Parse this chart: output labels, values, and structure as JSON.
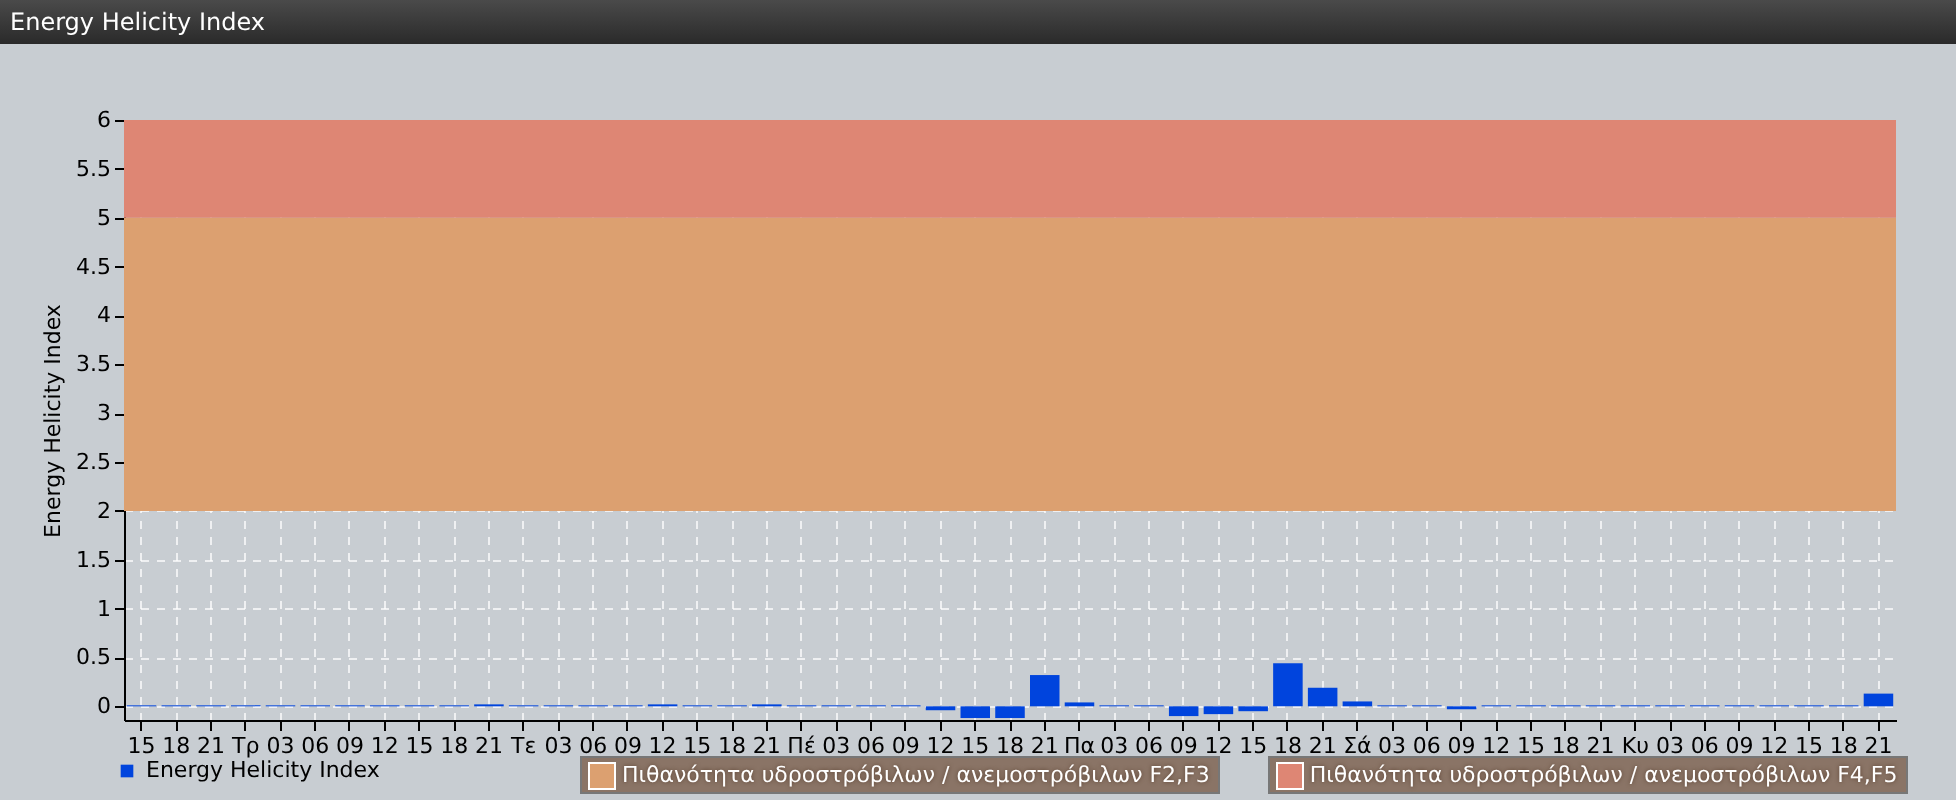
{
  "chart_data": {
    "type": "bar",
    "title": "Energy Helicity Index",
    "ylabel": "Energy Helicity Index",
    "categories": [
      "15",
      "18",
      "21",
      "Τρ",
      "03",
      "06",
      "09",
      "12",
      "15",
      "18",
      "21",
      "Τε",
      "03",
      "06",
      "09",
      "12",
      "15",
      "18",
      "21",
      "Πέ",
      "03",
      "06",
      "09",
      "12",
      "15",
      "18",
      "21",
      "Πα",
      "03",
      "06",
      "09",
      "12",
      "15",
      "18",
      "21",
      "Σά",
      "03",
      "06",
      "09",
      "12",
      "15",
      "18",
      "21",
      "Κυ",
      "03",
      "06",
      "09",
      "12",
      "15",
      "18",
      "21"
    ],
    "series": [
      {
        "name": "Energy Helicity Index",
        "color": "#0044dd",
        "values": [
          0.01,
          0.01,
          0.01,
          0.01,
          0.01,
          0.01,
          0.01,
          0.01,
          0.01,
          0.01,
          0.02,
          0.01,
          0.01,
          0.01,
          0.01,
          0.02,
          0.01,
          0.01,
          0.02,
          0.01,
          0.01,
          0.01,
          0.01,
          -0.04,
          -0.12,
          -0.12,
          0.32,
          0.04,
          0.01,
          0.01,
          -0.1,
          -0.08,
          -0.05,
          0.44,
          0.19,
          0.05,
          0.01,
          0.01,
          -0.03,
          0.01,
          0.01,
          0.01,
          0.01,
          0.01,
          0.01,
          0.01,
          0.01,
          0.01,
          0.01,
          0.01,
          0.13
        ]
      }
    ],
    "ylim": [
      -0.14,
      6
    ],
    "yticks": [
      0,
      0.5,
      1,
      1.5,
      2,
      2.5,
      3,
      3.5,
      4,
      4.5,
      5,
      5.5,
      6
    ],
    "bands": [
      {
        "axis": "y",
        "from": 2,
        "to": 5,
        "label": "Πιθανότητα υδροστρόβιλων / ανεμοστρόβιλων F2,F3",
        "color": "#dca070"
      },
      {
        "axis": "y",
        "from": 5,
        "to": 6,
        "label": "Πιθανότητα υδροστρόβιλων / ανεμοστρόβιλων F4,F5",
        "color": "#de8674"
      }
    ],
    "grid": true,
    "legend": "bottom left"
  }
}
